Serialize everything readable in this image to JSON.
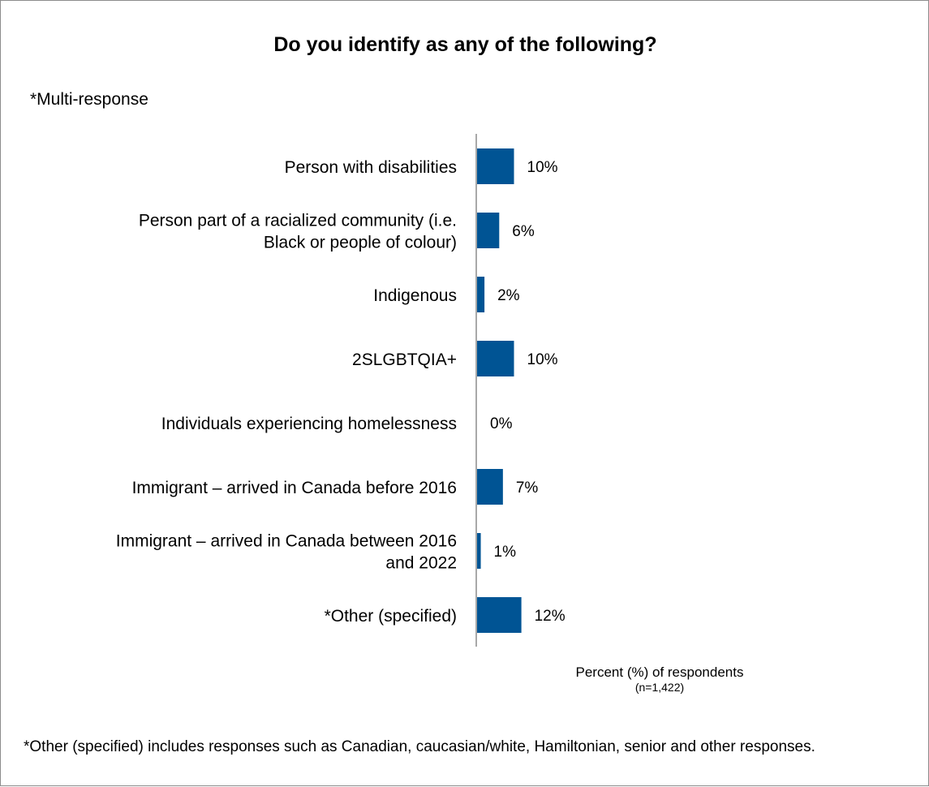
{
  "chart_data": {
    "type": "bar",
    "orientation": "horizontal",
    "title": "Do you identify as any of the following?",
    "subtitle": "*Multi-response",
    "categories": [
      [
        "Person with disabilities"
      ],
      [
        "Person part of a racialized community (i.e.",
        "Black or people of colour)"
      ],
      [
        "Indigenous"
      ],
      [
        "2SLGBTQIA+"
      ],
      [
        "Individuals experiencing homelessness"
      ],
      [
        "Immigrant – arrived in Canada before 2016"
      ],
      [
        "Immigrant – arrived in Canada between 2016",
        "and 2022"
      ],
      [
        "*Other (specified)"
      ]
    ],
    "values": [
      10,
      6,
      2,
      10,
      0,
      7,
      1,
      12
    ],
    "value_labels": [
      "10%",
      "6%",
      "2%",
      "10%",
      "0%",
      "7%",
      "1%",
      "12%"
    ],
    "xlabel": "Percent (%) of respondents",
    "xlabel_note": "(n=1,422)",
    "bar_color": "#005494",
    "grid": false,
    "legend": "none"
  },
  "footnote": "*Other (specified) includes responses such as Canadian, caucasian/white, Hamiltonian, senior and other responses."
}
